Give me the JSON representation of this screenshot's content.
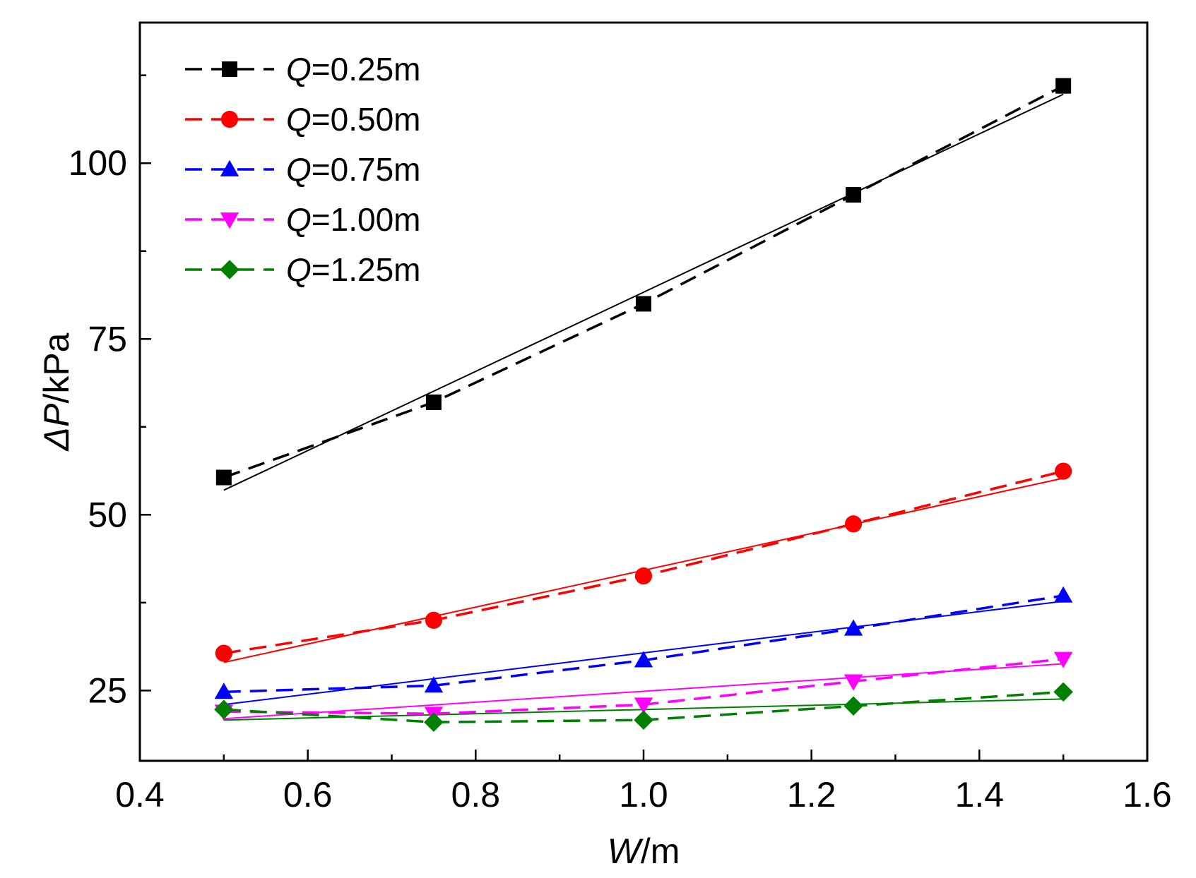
{
  "chart_data": {
    "type": "line",
    "title": "",
    "xlabel": {
      "var": "W",
      "unit": "/m"
    },
    "ylabel": {
      "prefix": "Δ",
      "var": "P",
      "unit": "/kPa"
    },
    "xlim": [
      0.4,
      1.6
    ],
    "ylim": [
      15,
      120
    ],
    "xticks": [
      0.4,
      0.6,
      0.8,
      1.0,
      1.2,
      1.4,
      1.6
    ],
    "xtick_labels": [
      "0.4",
      "0.6",
      "0.8",
      "1.0",
      "1.2",
      "1.4",
      "1.6"
    ],
    "yticks": [
      25,
      50,
      75,
      100
    ],
    "ytick_labels": [
      "25",
      "50",
      "75",
      "100"
    ],
    "grid": false,
    "legend_position": "top-left",
    "x": [
      0.5,
      0.75,
      1.0,
      1.25,
      1.5
    ],
    "series": [
      {
        "name": "Q=0.25m",
        "label_var": "Q",
        "label_rest": "=0.25m",
        "color": "#000000",
        "marker": "square",
        "values": [
          55.3,
          66.0,
          80.0,
          95.5,
          111.0
        ],
        "fit": [
          53.5,
          109.8
        ]
      },
      {
        "name": "Q=0.50m",
        "label_var": "Q",
        "label_rest": "=0.50m",
        "color": "#ff0000",
        "marker": "circle",
        "values": [
          30.3,
          35.0,
          41.3,
          48.7,
          56.2
        ],
        "fit": [
          29.0,
          55.2
        ]
      },
      {
        "name": "Q=0.75m",
        "label_var": "Q",
        "label_rest": "=0.75m",
        "color": "#0000ff",
        "marker": "triangle-up",
        "values": [
          24.8,
          25.7,
          29.3,
          33.8,
          38.5
        ],
        "fit": [
          23.0,
          37.7
        ]
      },
      {
        "name": "Q=1.00m",
        "label_var": "Q",
        "label_rest": "=1.00m",
        "color": "#ff00ff",
        "marker": "triangle-down",
        "values": [
          22.0,
          21.7,
          23.0,
          26.3,
          29.5
        ],
        "fit": [
          21.0,
          28.8
        ]
      },
      {
        "name": "Q=1.25m",
        "label_var": "Q",
        "label_rest": "=1.25m",
        "color": "#008000",
        "marker": "diamond",
        "values": [
          22.3,
          20.5,
          20.8,
          22.8,
          24.8
        ],
        "fit": [
          20.8,
          23.8
        ]
      }
    ]
  }
}
